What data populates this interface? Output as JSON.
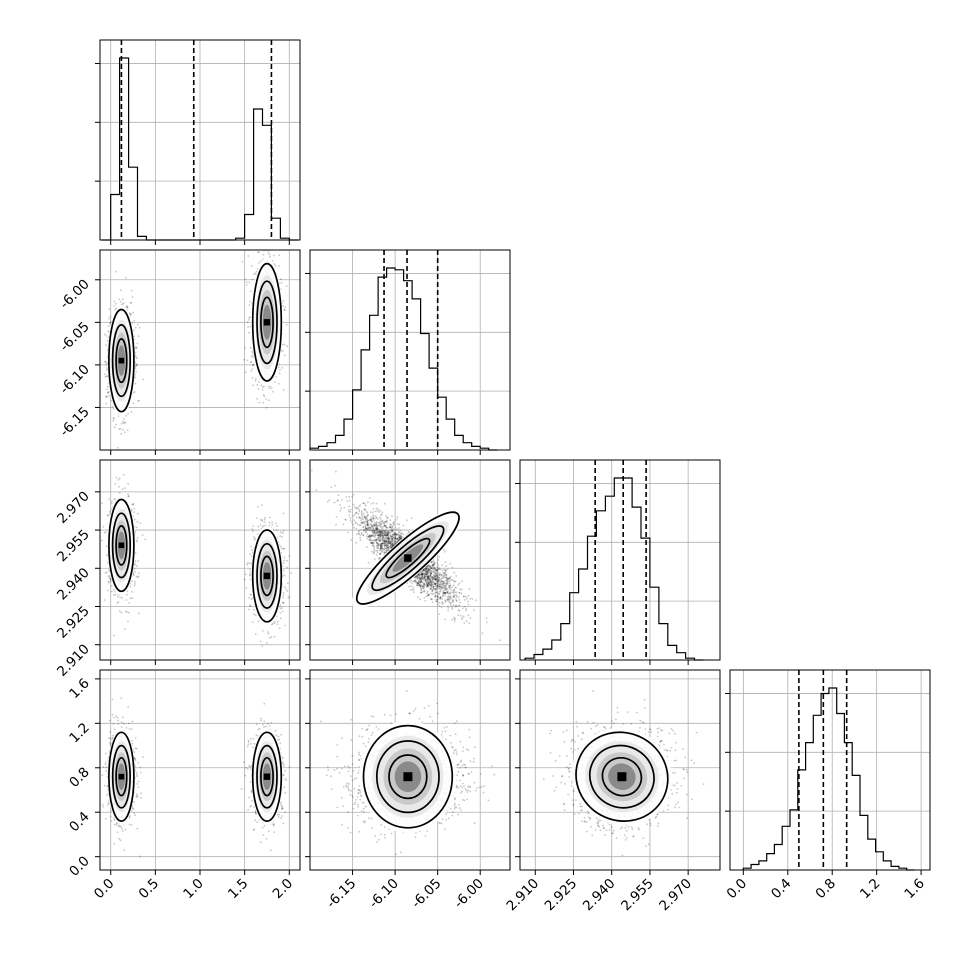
{
  "chart_data": {
    "type": "corner",
    "parameters": [
      {
        "ticks": [
          "0.0",
          "0.5",
          "1.0",
          "1.5",
          "2.0"
        ],
        "tick_values": [
          0.0,
          0.5,
          1.0,
          1.5,
          2.0
        ],
        "range": [
          -0.12,
          2.12
        ],
        "quantiles": [
          0.12,
          0.93,
          1.8
        ],
        "modes": [
          {
            "mean": 0.12,
            "sd": 0.07,
            "weight": 0.5
          },
          {
            "mean": 1.75,
            "sd": 0.08,
            "weight": 0.5
          }
        ],
        "histogram": {
          "bin_edges": [
            -0.1,
            0.0,
            0.1,
            0.2,
            0.3,
            0.4,
            0.5,
            0.6,
            0.7,
            0.8,
            0.9,
            1.0,
            1.1,
            1.2,
            1.3,
            1.4,
            1.5,
            1.6,
            1.7,
            1.8,
            1.9,
            2.0,
            2.1
          ],
          "counts": [
            0,
            0.25,
            1.0,
            0.4,
            0.02,
            0,
            0,
            0,
            0,
            0,
            0,
            0,
            0,
            0,
            0,
            0.01,
            0.14,
            0.72,
            0.63,
            0.12,
            0.01,
            0
          ]
        }
      },
      {
        "ticks": [
          "-6.15",
          "-6.10",
          "-6.05",
          "-6.00"
        ],
        "tick_values": [
          -6.15,
          -6.1,
          -6.05,
          -6.0
        ],
        "range": [
          -6.2,
          -5.965
        ],
        "quantiles": [
          -6.113,
          -6.086,
          -6.05
        ],
        "modes": [
          {
            "mean": -6.085,
            "sd": 0.03,
            "weight": 1.0
          }
        ],
        "histogram": {
          "bin_edges": [
            -6.2,
            -6.19,
            -6.18,
            -6.17,
            -6.16,
            -6.15,
            -6.14,
            -6.13,
            -6.12,
            -6.11,
            -6.1,
            -6.09,
            -6.08,
            -6.07,
            -6.06,
            -6.05,
            -6.04,
            -6.03,
            -6.02,
            -6.01,
            -6.0,
            -5.99,
            -5.98
          ],
          "counts": [
            0.01,
            0.02,
            0.04,
            0.08,
            0.17,
            0.33,
            0.55,
            0.74,
            0.95,
            1.0,
            0.99,
            0.93,
            0.83,
            0.64,
            0.45,
            0.29,
            0.17,
            0.08,
            0.04,
            0.02,
            0.01,
            0.0
          ]
        }
      },
      {
        "ticks": [
          "2.910",
          "2.925",
          "2.940",
          "2.955",
          "2.970"
        ],
        "tick_values": [
          2.91,
          2.925,
          2.94,
          2.955,
          2.97
        ],
        "range": [
          2.904,
          2.9825
        ],
        "quantiles": [
          2.9335,
          2.9445,
          2.9535
        ],
        "modes": [
          {
            "mean": 2.944,
            "sd": 0.009,
            "weight": 1.0
          }
        ],
        "histogram": {
          "bin_edges": [
            2.906,
            2.9095,
            2.913,
            2.9165,
            2.92,
            2.9235,
            2.927,
            2.9305,
            2.934,
            2.9375,
            2.941,
            2.9445,
            2.948,
            2.9515,
            2.955,
            2.9585,
            2.962,
            2.9655,
            2.969,
            2.9725,
            2.976
          ],
          "counts": [
            0.01,
            0.03,
            0.06,
            0.11,
            0.2,
            0.37,
            0.5,
            0.68,
            0.82,
            0.9,
            1.0,
            1.0,
            0.84,
            0.67,
            0.4,
            0.2,
            0.08,
            0.04,
            0.01,
            0.0
          ]
        }
      },
      {
        "ticks": [
          "0.0",
          "0.4",
          "0.8",
          "1.2",
          "1.6"
        ],
        "tick_values": [
          0.0,
          0.4,
          0.8,
          1.2,
          1.6
        ],
        "range": [
          -0.12,
          1.68
        ],
        "quantiles": [
          0.5,
          0.72,
          0.93
        ],
        "modes": [
          {
            "mean": 0.72,
            "sd": 0.2,
            "weight": 1.0
          }
        ],
        "histogram": {
          "bin_edges": [
            0.0,
            0.07,
            0.14,
            0.21,
            0.28,
            0.35,
            0.42,
            0.49,
            0.56,
            0.63,
            0.7,
            0.77,
            0.84,
            0.91,
            0.98,
            1.05,
            1.12,
            1.19,
            1.26,
            1.33,
            1.4,
            1.47,
            1.54
          ],
          "counts": [
            0.01,
            0.03,
            0.05,
            0.09,
            0.14,
            0.24,
            0.33,
            0.55,
            0.7,
            0.85,
            0.97,
            1.0,
            0.86,
            0.7,
            0.52,
            0.3,
            0.17,
            0.1,
            0.05,
            0.02,
            0.01,
            0.0
          ]
        }
      }
    ],
    "correlations": {
      "2-1": -0.88,
      "3-1": 0.0,
      "3-2": 0.05
    },
    "grid": true
  }
}
